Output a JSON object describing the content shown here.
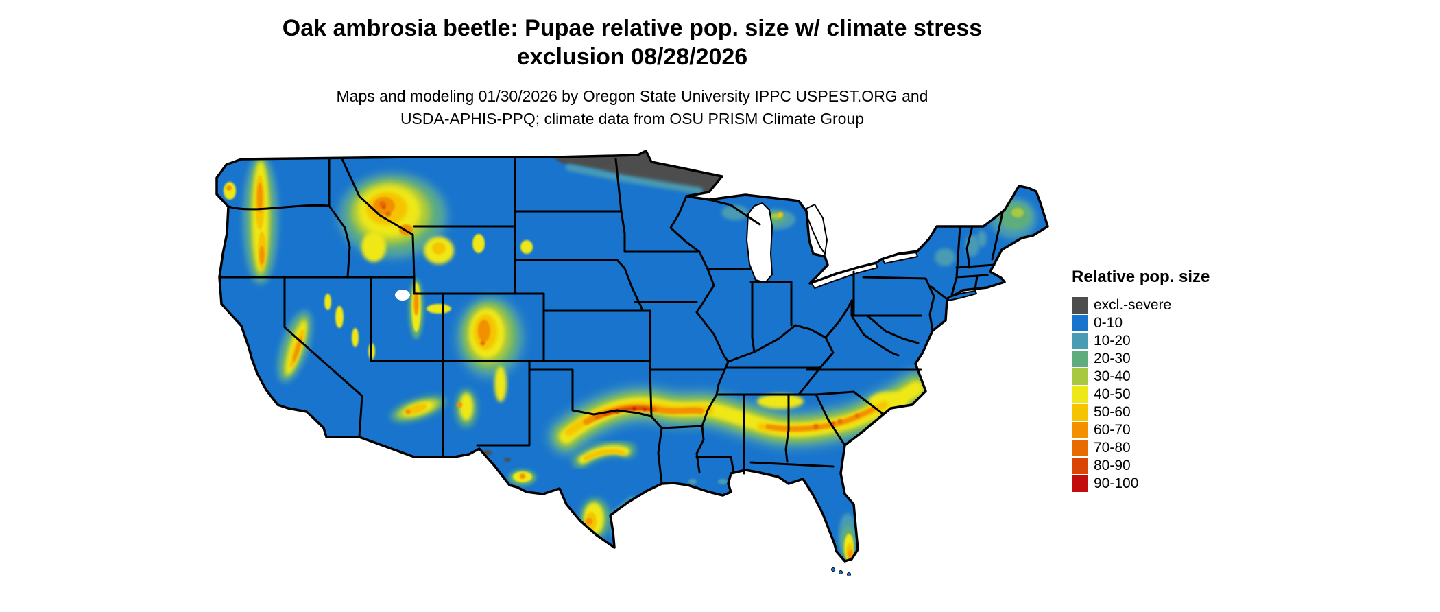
{
  "header": {
    "title_line1": "Oak ambrosia beetle: Pupae relative pop. size w/ climate stress",
    "title_line2": "exclusion 08/28/2026",
    "subtitle_line1": "Maps and modeling 01/30/2026 by Oregon State University IPPC USPEST.ORG and",
    "subtitle_line2": "USDA-APHIS-PPQ; climate data from OSU PRISM Climate Group"
  },
  "legend": {
    "title": "Relative pop. size",
    "items": [
      {
        "label": "excl.-severe",
        "color": "#4D4D4D"
      },
      {
        "label": "0-10",
        "color": "#1874CD"
      },
      {
        "label": "10-20",
        "color": "#4A9BB4"
      },
      {
        "label": "20-30",
        "color": "#5FAD7C"
      },
      {
        "label": "30-40",
        "color": "#A8C841"
      },
      {
        "label": "40-50",
        "color": "#EFE818"
      },
      {
        "label": "50-60",
        "color": "#F5C400"
      },
      {
        "label": "60-70",
        "color": "#F29000"
      },
      {
        "label": "70-80",
        "color": "#E66C00"
      },
      {
        "label": "80-90",
        "color": "#D94504"
      },
      {
        "label": "90-100",
        "color": "#C30C0C"
      }
    ]
  },
  "map": {
    "colors": {
      "water": "#FFFFFF",
      "state_border": "#000000",
      "national_border": "#000000"
    }
  }
}
